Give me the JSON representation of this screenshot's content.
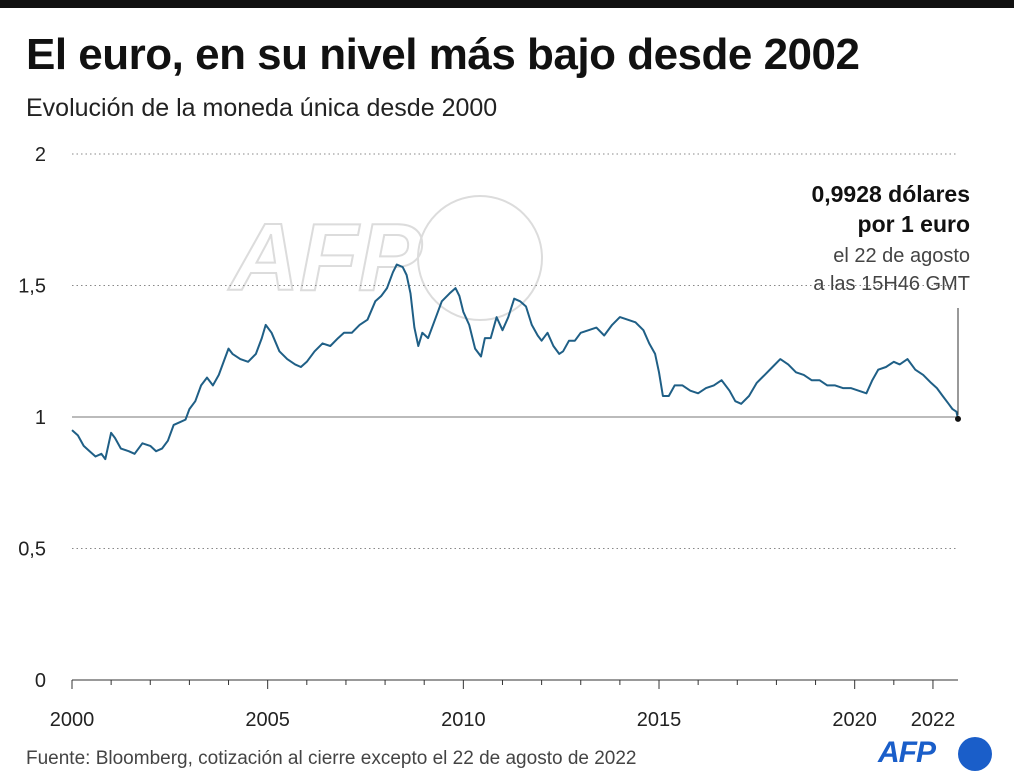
{
  "header": {
    "title": "El euro, en su nivel más bajo desde 2002",
    "subtitle": "Evolución de la moneda única desde 2000"
  },
  "footer": {
    "source": "Fuente: Bloomberg, cotización al cierre excepto el 22 de agosto de 2022",
    "logo": "AFP"
  },
  "watermark": "AFP",
  "colors": {
    "line": "#1f5f86",
    "text": "#111111",
    "logo": "#1a5ec9"
  },
  "chart_data": {
    "type": "line",
    "title": "El euro, en su nivel más bajo desde 2002",
    "subtitle": "Evolución de la moneda única desde 2000",
    "xlabel": "",
    "ylabel": "",
    "xlim": [
      2000,
      2022.64
    ],
    "ylim": [
      0,
      2
    ],
    "x_ticks": [
      2000,
      2005,
      2010,
      2015,
      2020,
      2022
    ],
    "x_tick_labels": [
      "2000",
      "2005",
      "2010",
      "2015",
      "2020",
      "2022"
    ],
    "y_ticks": [
      0,
      0.5,
      1,
      1.5,
      2
    ],
    "y_tick_labels": [
      "0",
      "0,5",
      "1",
      "1,5",
      "2"
    ],
    "grid": "horizontal dotted",
    "reference_line": 1,
    "series": [
      {
        "x": [
          2000.0,
          2000.15,
          2000.3,
          2000.45,
          2000.6,
          2000.75,
          2000.85,
          2001.0,
          2001.1,
          2001.25,
          2001.45,
          2001.6,
          2001.8,
          2002.0,
          2002.15,
          2002.3,
          2002.45,
          2002.6,
          2002.75,
          2002.9,
          2003.0,
          2003.15,
          2003.3,
          2003.45,
          2003.6,
          2003.75,
          2003.9,
          2004.0,
          2004.1,
          2004.3,
          2004.5,
          2004.7,
          2004.85,
          2004.95,
          2005.1,
          2005.3,
          2005.5,
          2005.7,
          2005.85,
          2006.0,
          2006.2,
          2006.4,
          2006.6,
          2006.8,
          2006.95,
          2007.15,
          2007.35,
          2007.55,
          2007.75,
          2007.9,
          2008.05,
          2008.2,
          2008.3,
          2008.45,
          2008.55,
          2008.65,
          2008.75,
          2008.85,
          2008.95,
          2009.1,
          2009.25,
          2009.45,
          2009.65,
          2009.8,
          2009.9,
          2010.0,
          2010.15,
          2010.3,
          2010.45,
          2010.55,
          2010.7,
          2010.85,
          2011.0,
          2011.15,
          2011.3,
          2011.45,
          2011.6,
          2011.75,
          2011.9,
          2012.0,
          2012.15,
          2012.3,
          2012.45,
          2012.55,
          2012.7,
          2012.85,
          2013.0,
          2013.2,
          2013.4,
          2013.6,
          2013.8,
          2014.0,
          2014.2,
          2014.4,
          2014.6,
          2014.75,
          2014.9,
          2015.0,
          2015.1,
          2015.25,
          2015.4,
          2015.6,
          2015.8,
          2016.0,
          2016.2,
          2016.4,
          2016.6,
          2016.8,
          2016.95,
          2017.1,
          2017.3,
          2017.5,
          2017.7,
          2017.9,
          2018.1,
          2018.3,
          2018.5,
          2018.7,
          2018.9,
          2019.1,
          2019.3,
          2019.5,
          2019.7,
          2019.9,
          2020.1,
          2020.3,
          2020.45,
          2020.6,
          2020.8,
          2021.0,
          2021.15,
          2021.35,
          2021.55,
          2021.75,
          2021.95,
          2022.1,
          2022.25,
          2022.4,
          2022.5,
          2022.6,
          2022.64
        ],
        "values": [
          0.95,
          0.93,
          0.89,
          0.87,
          0.85,
          0.86,
          0.84,
          0.94,
          0.92,
          0.88,
          0.87,
          0.86,
          0.9,
          0.89,
          0.87,
          0.88,
          0.91,
          0.97,
          0.98,
          0.99,
          1.03,
          1.06,
          1.12,
          1.15,
          1.12,
          1.16,
          1.22,
          1.26,
          1.24,
          1.22,
          1.21,
          1.24,
          1.3,
          1.35,
          1.32,
          1.25,
          1.22,
          1.2,
          1.19,
          1.21,
          1.25,
          1.28,
          1.27,
          1.3,
          1.32,
          1.32,
          1.35,
          1.37,
          1.44,
          1.46,
          1.49,
          1.55,
          1.58,
          1.57,
          1.54,
          1.47,
          1.34,
          1.27,
          1.32,
          1.3,
          1.36,
          1.44,
          1.47,
          1.49,
          1.46,
          1.4,
          1.35,
          1.26,
          1.23,
          1.3,
          1.3,
          1.38,
          1.33,
          1.38,
          1.45,
          1.44,
          1.42,
          1.35,
          1.31,
          1.29,
          1.32,
          1.27,
          1.24,
          1.25,
          1.29,
          1.29,
          1.32,
          1.33,
          1.34,
          1.31,
          1.35,
          1.38,
          1.37,
          1.36,
          1.33,
          1.28,
          1.24,
          1.17,
          1.08,
          1.08,
          1.12,
          1.12,
          1.1,
          1.09,
          1.11,
          1.12,
          1.14,
          1.1,
          1.06,
          1.05,
          1.08,
          1.13,
          1.16,
          1.19,
          1.22,
          1.2,
          1.17,
          1.16,
          1.14,
          1.14,
          1.12,
          1.12,
          1.11,
          1.11,
          1.1,
          1.09,
          1.14,
          1.18,
          1.19,
          1.21,
          1.2,
          1.22,
          1.18,
          1.16,
          1.13,
          1.11,
          1.08,
          1.05,
          1.03,
          1.02,
          0.9928
        ]
      }
    ],
    "annotation": {
      "value_line1": "0,9928 dólares",
      "value_line2": "por 1 euro",
      "date_line1": "el 22 de agosto",
      "date_line2": "a las 15H46 GMT",
      "x": 2022.64,
      "y": 0.9928
    }
  }
}
